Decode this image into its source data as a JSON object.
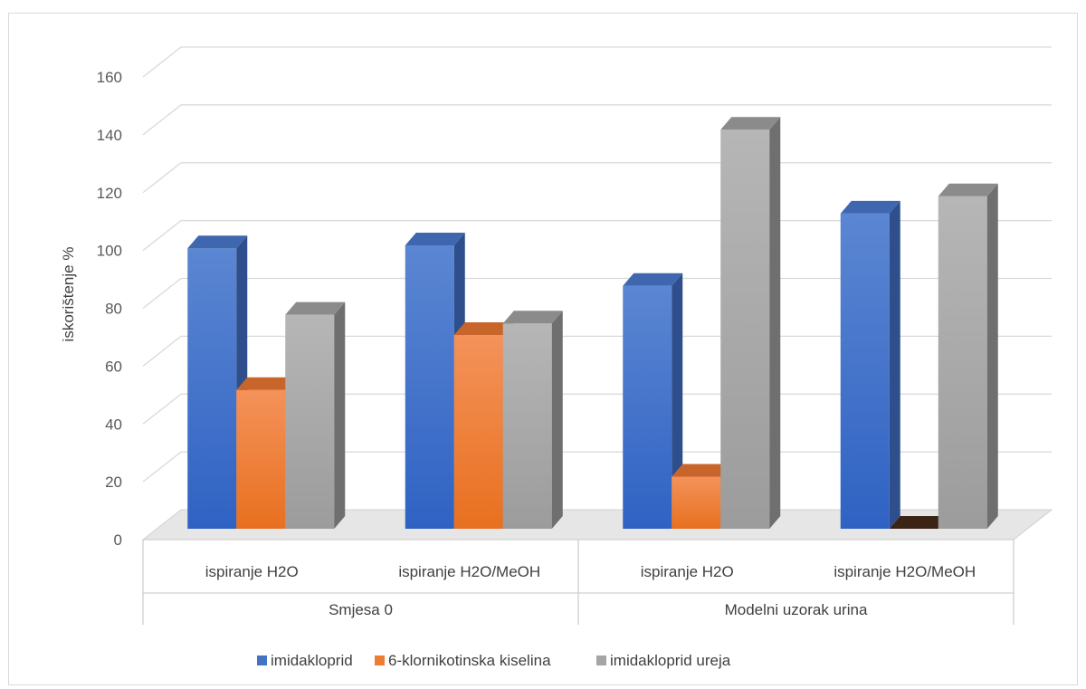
{
  "chart_data": {
    "type": "bar",
    "ylabel": "iskorištenje %",
    "ylim": [
      0,
      160
    ],
    "yticks": [
      0,
      20,
      40,
      60,
      80,
      100,
      120,
      140,
      160
    ],
    "categories": [
      "ispiranje H2O",
      "ispiranje H2O/MeOH",
      "ispiranje H2O",
      "ispiranje H2O/MeOH"
    ],
    "groups": [
      {
        "label": "Smjesa 0",
        "categories": [
          0,
          1
        ]
      },
      {
        "label": "Modelni uzorak urina",
        "categories": [
          2,
          3
        ]
      }
    ],
    "series": [
      {
        "name": "imidakloprid",
        "color": "#4472c4",
        "values": [
          97,
          98,
          84,
          109
        ]
      },
      {
        "name": "6-klornikotinska kiselina",
        "color": "#ed7d31",
        "values": [
          48,
          67,
          18,
          0
        ]
      },
      {
        "name": "imidakloprid ureja",
        "color": "#a5a5a5",
        "values": [
          74,
          71,
          138,
          115
        ]
      }
    ],
    "grid": true,
    "legend_position": "bottom"
  }
}
